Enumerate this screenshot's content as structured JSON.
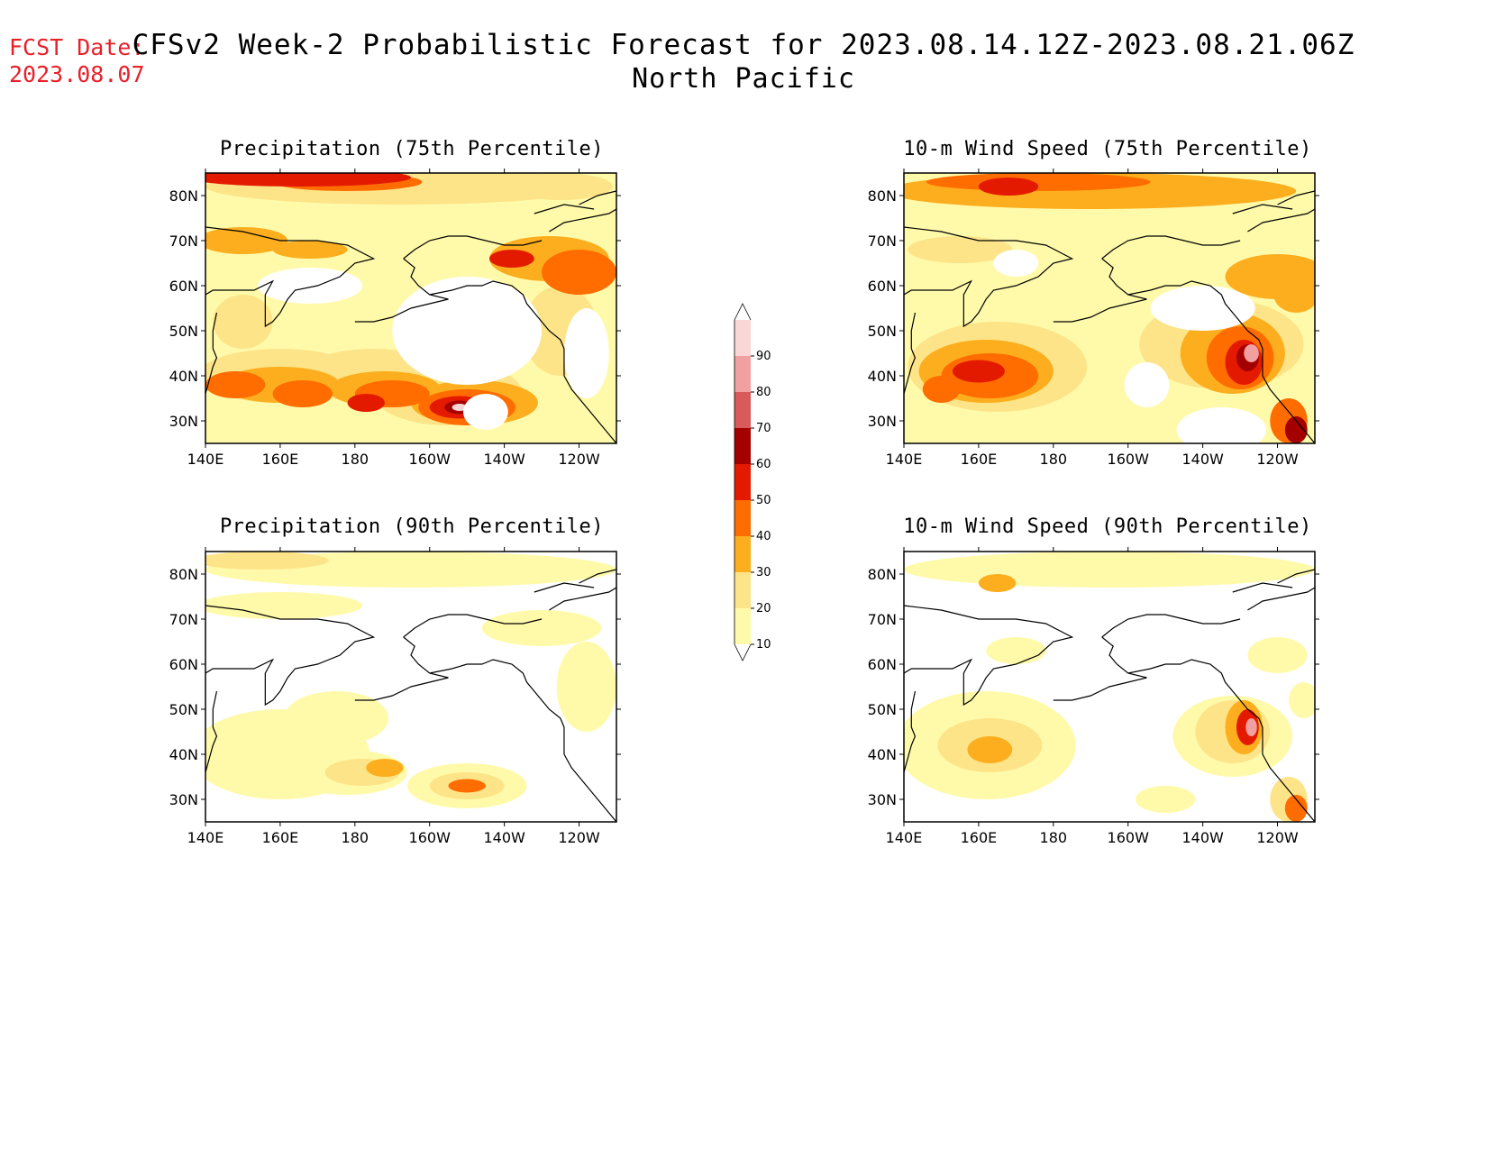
{
  "header": {
    "fcst_label": "FCST Date:",
    "fcst_date": "2023.08.07",
    "title": "CFSv2 Week-2 Probabilistic Forecast for 2023.08.14.12Z-2023.08.21.06Z",
    "subtitle": "North Pacific"
  },
  "panels": [
    {
      "id": "precip75",
      "title": "Precipitation (75th Percentile)"
    },
    {
      "id": "wind75",
      "title": "10-m Wind Speed (75th Percentile)"
    },
    {
      "id": "precip90",
      "title": "Precipitation (90th Percentile)"
    },
    {
      "id": "wind90",
      "title": "10-m Wind Speed (90th Percentile)"
    }
  ],
  "axes": {
    "lat_labels": [
      "30N",
      "40N",
      "50N",
      "60N",
      "70N",
      "80N"
    ],
    "lon_labels": [
      "140E",
      "160E",
      "180",
      "160W",
      "140W",
      "120W"
    ]
  },
  "colorbar": {
    "levels": [
      10,
      20,
      30,
      40,
      50,
      60,
      70,
      80,
      90
    ],
    "colors": [
      "#fffaaa",
      "#fde488",
      "#fcae1e",
      "#ff6c00",
      "#e41a00",
      "#a50000",
      "#d95a5a",
      "#f0a0a0",
      "#fbd6d6"
    ]
  }
}
